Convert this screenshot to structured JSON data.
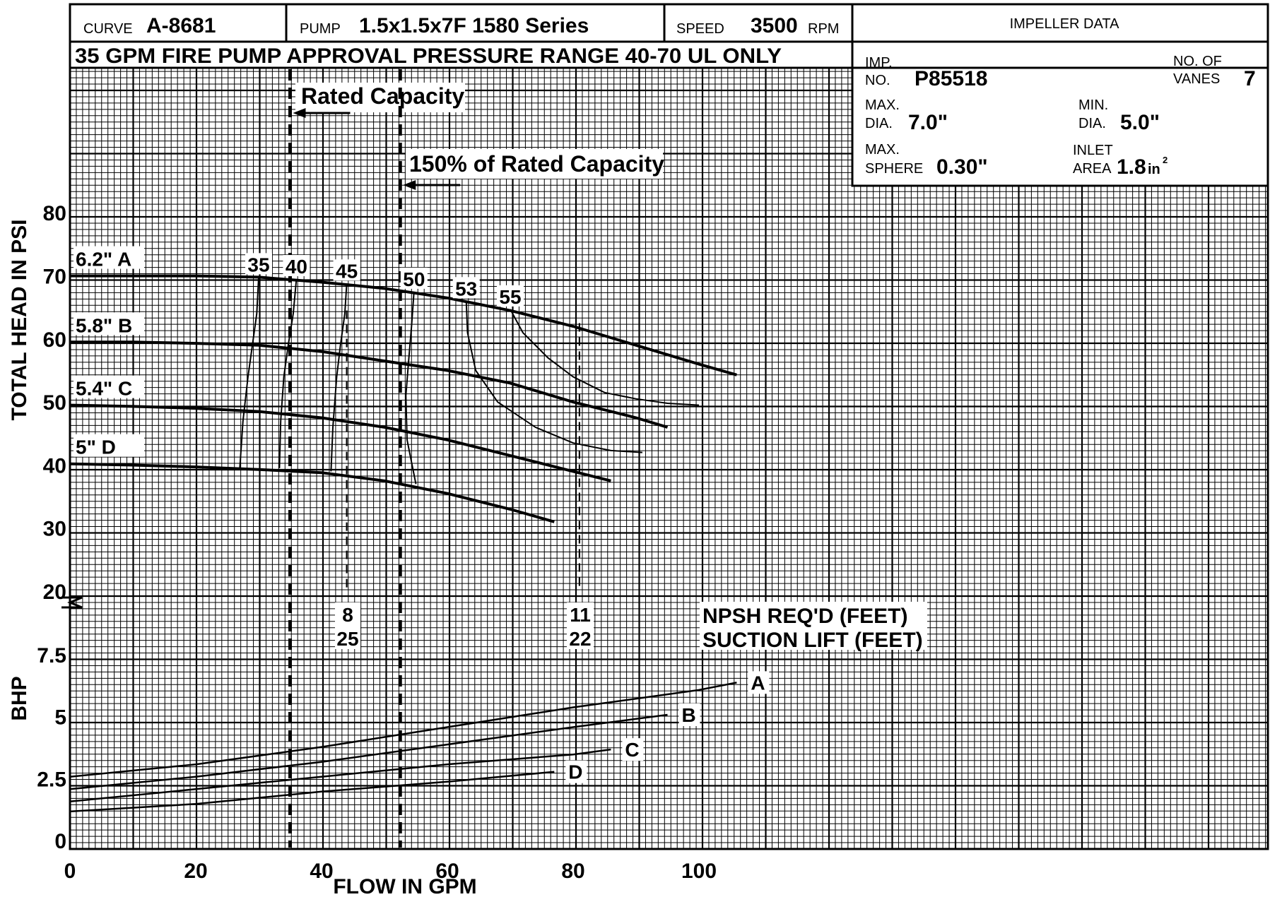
{
  "header": {
    "curve_label": "CURVE",
    "curve_value": "A-8681",
    "pump_label": "PUMP",
    "pump_value": "1.5x1.5x7F  1580 Series",
    "speed_label": "SPEED",
    "speed_value": "3500",
    "speed_unit": "RPM",
    "impeller_title": "IMPELLER DATA",
    "subtitle": "35 GPM FIRE PUMP APPROVAL PRESSURE RANGE 40-70 UL ONLY"
  },
  "impeller": {
    "imp_label_1": "IMP.",
    "imp_label_2": "NO.",
    "imp_value": "P85518",
    "vanes_label_1": "NO. OF",
    "vanes_label_2": "VANES",
    "vanes_value": "7",
    "maxdia_label_1": "MAX.",
    "maxdia_label_2": "DIA.",
    "maxdia_value": "7.0\"",
    "mindia_label_1": "MIN.",
    "mindia_label_2": "DIA.",
    "mindia_value": "5.0\"",
    "sphere_label_1": "MAX.",
    "sphere_label_2": "SPHERE",
    "sphere_value": "0.30\"",
    "inlet_label_1": "INLET",
    "inlet_label_2": "AREA",
    "inlet_value": "1.8",
    "inlet_unit": "in",
    "inlet_exp": "2"
  },
  "annotations": {
    "rated_capacity": "Rated Capacity",
    "rated_150": "150% of Rated Capacity",
    "npsh_label": "NPSH REQ'D (FEET)",
    "suction_label": "SUCTION LIFT (FEET)",
    "npsh_1": "8",
    "suction_1": "25",
    "npsh_2": "11",
    "suction_2": "22"
  },
  "chart_data": {
    "type": "line",
    "xlabel": "FLOW IN GPM",
    "ylabel_head": "TOTAL HEAD IN PSI",
    "ylabel_bhp": "BHP",
    "x_ticks": [
      "0",
      "20",
      "40",
      "60",
      "80",
      "100"
    ],
    "head_ticks": [
      "20",
      "30",
      "40",
      "50",
      "60",
      "70",
      "80"
    ],
    "bhp_ticks": [
      "0",
      "2.5",
      "5",
      "7.5"
    ],
    "xlim": [
      0,
      190
    ],
    "head_ylim": [
      20,
      80
    ],
    "bhp_ylim": [
      0,
      7.5
    ],
    "rated_capacity_gpm": 35,
    "rated_150_gpm": 52.5,
    "head_series": [
      {
        "name": "6.2\" A",
        "x": [
          0,
          10,
          20,
          30,
          40,
          50,
          60,
          70,
          80,
          90,
          100,
          106
        ],
        "y": [
          71,
          71,
          71,
          70.8,
          70,
          69,
          67.5,
          65.5,
          63,
          60,
          57,
          55.3
        ]
      },
      {
        "name": "5.8\" B",
        "x": [
          0,
          10,
          20,
          30,
          40,
          50,
          60,
          70,
          80,
          90,
          95
        ],
        "y": [
          60.5,
          60.5,
          60.3,
          60,
          59,
          57.5,
          56,
          54,
          51,
          48.5,
          47
        ]
      },
      {
        "name": "5.4\" C",
        "x": [
          0,
          10,
          20,
          30,
          40,
          50,
          60,
          70,
          80,
          86
        ],
        "y": [
          50.5,
          50.3,
          50,
          49.5,
          48.5,
          47,
          45,
          42.5,
          40,
          38.5
        ]
      },
      {
        "name": "5\" D",
        "x": [
          0,
          10,
          20,
          30,
          40,
          50,
          60,
          70,
          77
        ],
        "y": [
          41.2,
          41,
          40.7,
          40.3,
          39.8,
          38.5,
          36.5,
          34,
          32
        ]
      }
    ],
    "efficiency_contours": [
      {
        "name": "35",
        "x": [
          30,
          29.7,
          29,
          28.3,
          27.5,
          27
        ],
        "y": [
          70.8,
          65,
          60,
          55,
          48,
          40.5
        ]
      },
      {
        "name": "40",
        "x": [
          36,
          35.5,
          34.7,
          34,
          33.5,
          33.3
        ],
        "y": [
          70.5,
          65,
          60,
          55,
          48,
          40.5
        ]
      },
      {
        "name": "45",
        "x": [
          44,
          43.7,
          43,
          42.4,
          41.8,
          41.5
        ],
        "y": [
          69.8,
          65,
          60,
          55,
          47,
          40
        ]
      },
      {
        "name": "50",
        "x": [
          54.7,
          54.3,
          53.8,
          53.4,
          53.6,
          55
        ],
        "y": [
          68.5,
          63,
          57,
          52,
          45,
          38
        ]
      },
      {
        "name": "53",
        "x": [
          63,
          63.2,
          64.5,
          68,
          74,
          80,
          86,
          91
        ],
        "y": [
          67,
          62,
          56,
          51,
          47,
          44.5,
          43.3,
          43
        ]
      },
      {
        "name": "55",
        "x": [
          70,
          72,
          76,
          80,
          85,
          90,
          95,
          100
        ],
        "y": [
          65.7,
          62,
          58,
          55,
          52.5,
          51.5,
          50.8,
          50.5
        ]
      }
    ],
    "bhp_series": [
      {
        "name": "A",
        "x": [
          0,
          20,
          40,
          60,
          80,
          100,
          106
        ],
        "y": [
          2.6,
          3.1,
          3.8,
          4.6,
          5.4,
          6.1,
          6.4
        ]
      },
      {
        "name": "B",
        "x": [
          0,
          20,
          40,
          60,
          80,
          95
        ],
        "y": [
          2.1,
          2.6,
          3.2,
          3.9,
          4.6,
          5.1
        ]
      },
      {
        "name": "C",
        "x": [
          0,
          20,
          40,
          60,
          80,
          86
        ],
        "y": [
          1.6,
          2.1,
          2.6,
          3.1,
          3.5,
          3.7
        ]
      },
      {
        "name": "D",
        "x": [
          0,
          20,
          40,
          60,
          77
        ],
        "y": [
          1.2,
          1.5,
          2.0,
          2.4,
          2.8
        ]
      }
    ]
  }
}
